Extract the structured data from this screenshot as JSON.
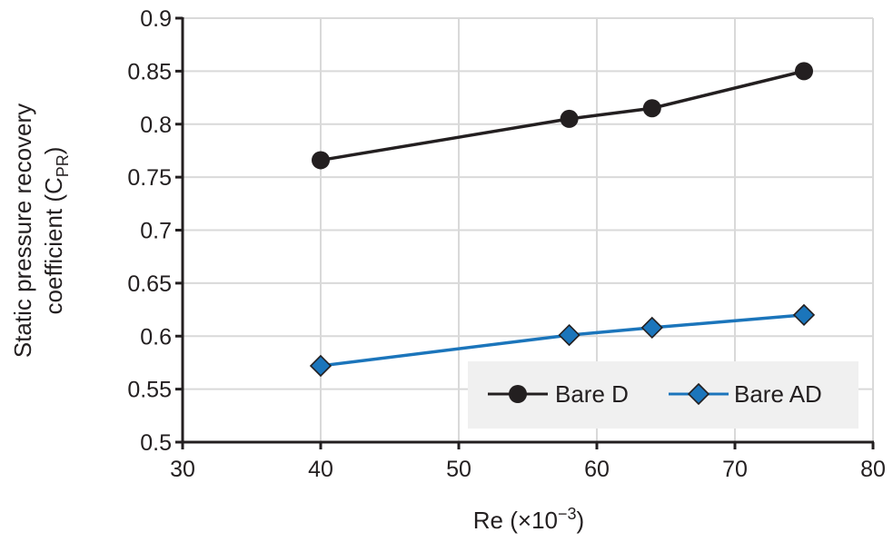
{
  "chart_data": {
    "type": "line",
    "title": "",
    "xlabel": "Re (×10",
    "xlabel_exp": "−3",
    "xlabel_close": ")",
    "ylabel_line1": "Static pressure recovery",
    "ylabel_line2": "coefficient (C",
    "ylabel_sub": "PR",
    "ylabel_close": ")",
    "xlim": [
      30,
      80
    ],
    "ylim": [
      0.5,
      0.9
    ],
    "x_ticks": [
      30,
      40,
      50,
      60,
      70,
      80
    ],
    "x_tick_labels": [
      "30",
      "40",
      "50",
      "60",
      "70",
      "80"
    ],
    "y_ticks": [
      0.5,
      0.55,
      0.6,
      0.65,
      0.7,
      0.75,
      0.8,
      0.85,
      0.9
    ],
    "y_tick_labels": [
      "0.5",
      "0.55",
      "0.6",
      "0.65",
      "0.7",
      "0.75",
      "0.8",
      "0.85",
      "0.9"
    ],
    "grid": true,
    "legend_position": "bottom-right",
    "series": [
      {
        "name": "Bare D",
        "marker": "circle",
        "color": "#231f20",
        "marker_color": "#231f20",
        "x": [
          40,
          58,
          64,
          75
        ],
        "y": [
          0.766,
          0.805,
          0.815,
          0.85
        ]
      },
      {
        "name": "Bare AD",
        "marker": "diamond",
        "color": "#1b75bb",
        "marker_color": "#1b75bb",
        "x": [
          40,
          58,
          64,
          75
        ],
        "y": [
          0.572,
          0.601,
          0.608,
          0.62
        ]
      }
    ]
  },
  "colors": {
    "axis": "#231f20",
    "grid": "#d9d9d9",
    "legend_bg": "#f0f0f0"
  }
}
